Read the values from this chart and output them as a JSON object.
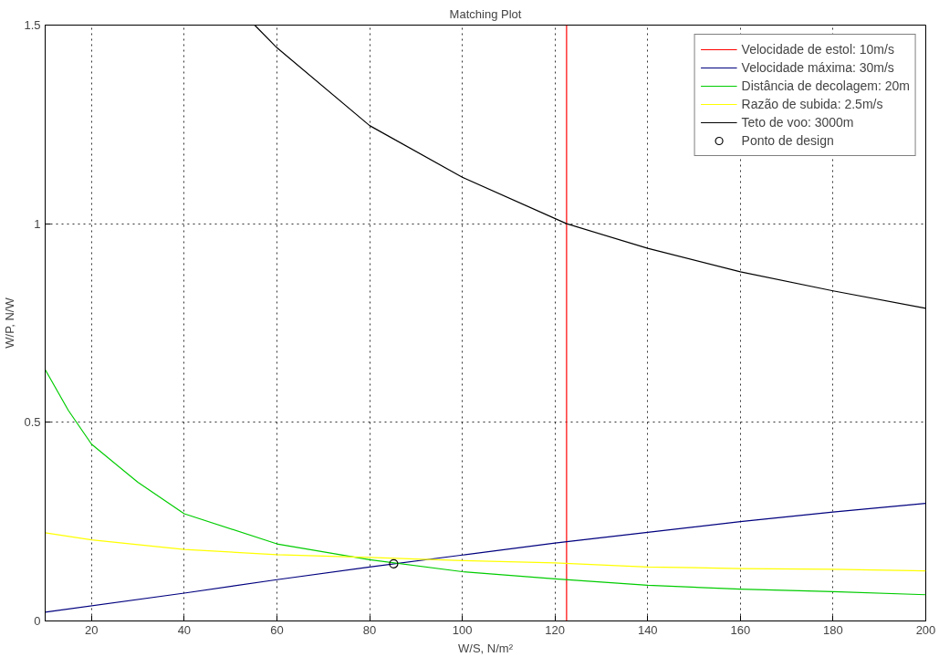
{
  "chart_data": {
    "type": "line",
    "title": "Matching Plot",
    "xlabel": "W/S, N/m²",
    "ylabel": "W/P, N/W",
    "xlim": [
      10,
      200
    ],
    "ylim": [
      0,
      1.5
    ],
    "xticks": [
      20,
      40,
      60,
      80,
      100,
      120,
      140,
      160,
      180,
      200
    ],
    "yticks": [
      0,
      0.5,
      1,
      1.5
    ],
    "grid": true,
    "legend": "top right",
    "series": [
      {
        "name": "Velocidade de estol: 10m/s",
        "color": "#ff0000",
        "x": [
          122.5,
          122.5
        ],
        "values": [
          0,
          1.5
        ]
      },
      {
        "name": "Velocidade máxima: 30m/s",
        "color": "#00007f",
        "x": [
          10,
          40,
          60,
          80,
          100,
          120,
          140,
          160,
          180,
          200
        ],
        "values": [
          0.022,
          0.07,
          0.104,
          0.136,
          0.166,
          0.196,
          0.223,
          0.25,
          0.274,
          0.296
        ]
      },
      {
        "name": "Distância de decolagem: 20m",
        "color": "#00cc00",
        "x": [
          10,
          15,
          20,
          30,
          40,
          60,
          80,
          100,
          120,
          140,
          160,
          180,
          200
        ],
        "values": [
          0.633,
          0.53,
          0.445,
          0.349,
          0.27,
          0.194,
          0.154,
          0.124,
          0.106,
          0.09,
          0.08,
          0.074,
          0.066
        ]
      },
      {
        "name": "Razão de subida: 2.5m/s",
        "color": "#ffff00",
        "x": [
          10,
          20,
          40,
          60,
          80,
          100,
          120,
          140,
          160,
          180,
          200
        ],
        "values": [
          0.222,
          0.204,
          0.18,
          0.167,
          0.16,
          0.152,
          0.146,
          0.136,
          0.132,
          0.13,
          0.126
        ]
      },
      {
        "name": "Teto de voo: 3000m",
        "color": "#000000",
        "x": [
          55.2,
          60,
          80,
          100,
          122.5,
          140,
          160,
          180,
          200
        ],
        "values": [
          1.5,
          1.443,
          1.247,
          1.117,
          1.0,
          0.938,
          0.879,
          0.831,
          0.787
        ]
      },
      {
        "name": "Ponto de design",
        "type": "scatter",
        "marker": "circle",
        "color": "#000000",
        "x": [
          85.2
        ],
        "values": [
          0.144
        ]
      }
    ]
  }
}
